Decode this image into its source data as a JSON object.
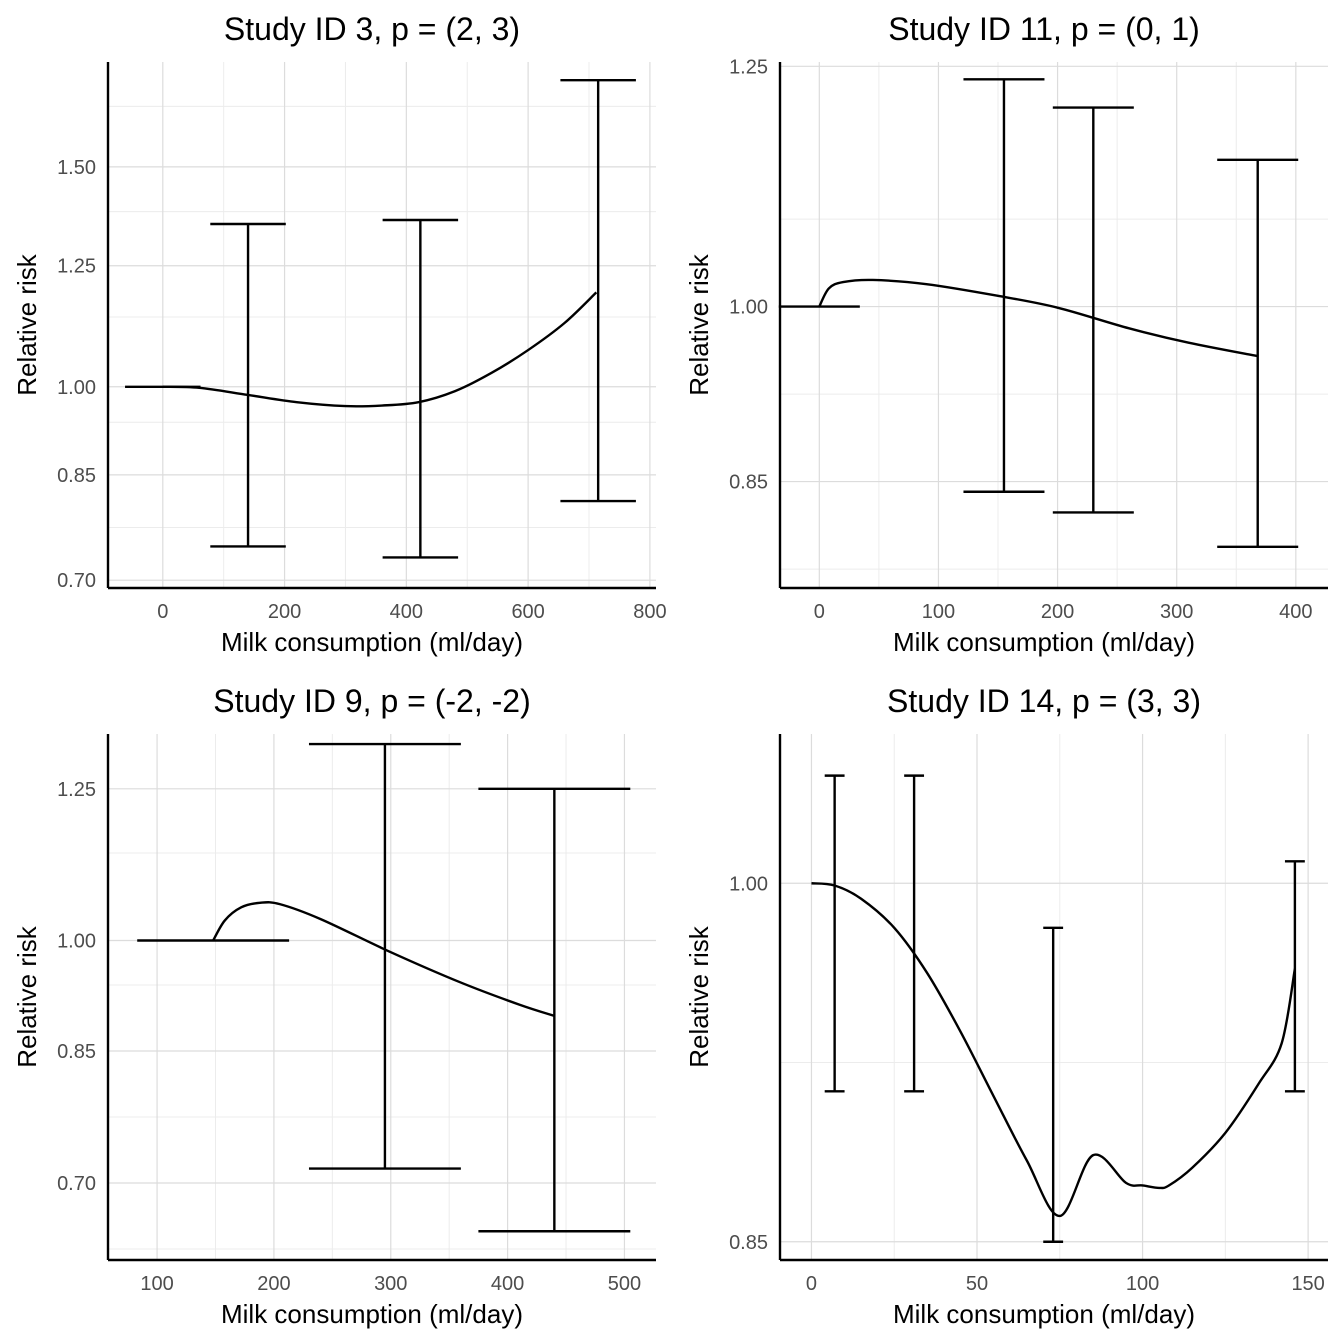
{
  "chart_data": [
    {
      "type": "line",
      "title": "Study ID 3, p = (2, 3)",
      "xlabel": "Milk consumption (ml/day)",
      "ylabel": "Relative risk",
      "log_y": true,
      "xlim": [
        -90,
        810
      ],
      "ylim": [
        0.69,
        1.82
      ],
      "x_ticks": [
        0,
        200,
        400,
        600,
        800
      ],
      "y_ticks": [
        0.7,
        0.85,
        1.0,
        1.25,
        1.5
      ],
      "y_tick_labels": [
        "0.70",
        "0.85",
        "1.00",
        "1.25",
        "1.50"
      ],
      "reference": {
        "x": 0,
        "y": 1.0,
        "halfwidth": 62
      },
      "curve": [
        [
          0,
          1.0
        ],
        [
          60,
          0.998
        ],
        [
          140,
          0.985
        ],
        [
          220,
          0.972
        ],
        [
          300,
          0.965
        ],
        [
          360,
          0.966
        ],
        [
          420,
          0.972
        ],
        [
          480,
          0.992
        ],
        [
          540,
          1.026
        ],
        [
          600,
          1.07
        ],
        [
          660,
          1.125
        ],
        [
          712,
          1.19
        ]
      ],
      "error_bars": [
        {
          "x": 140,
          "lower": 0.745,
          "upper": 1.35,
          "halfwidth": 62
        },
        {
          "x": 423,
          "lower": 0.73,
          "upper": 1.36,
          "halfwidth": 62
        },
        {
          "x": 715,
          "lower": 0.81,
          "upper": 1.76,
          "halfwidth": 62
        }
      ],
      "grid": true
    },
    {
      "type": "line",
      "title": "Study ID 11, p = (0, 1)",
      "xlabel": "Milk consumption (ml/day)",
      "ylabel": "Relative risk",
      "log_y": true,
      "xlim": [
        -33,
        427
      ],
      "ylim": [
        0.77,
        1.255
      ],
      "x_ticks": [
        0,
        100,
        200,
        300,
        400
      ],
      "y_ticks": [
        0.85,
        1.0,
        1.25
      ],
      "y_tick_labels": [
        "0.85",
        "1.00",
        "1.25"
      ],
      "reference": {
        "x": 0,
        "y": 1.0,
        "halfwidth": 34
      },
      "curve": [
        [
          0,
          1.0
        ],
        [
          8,
          1.017
        ],
        [
          20,
          1.023
        ],
        [
          45,
          1.025
        ],
        [
          90,
          1.021
        ],
        [
          150,
          1.01
        ],
        [
          200,
          0.999
        ],
        [
          260,
          0.98
        ],
        [
          310,
          0.967
        ],
        [
          368,
          0.955
        ]
      ],
      "error_bars": [
        {
          "x": 155,
          "lower": 0.842,
          "upper": 1.235,
          "halfwidth": 34
        },
        {
          "x": 230,
          "lower": 0.826,
          "upper": 1.203,
          "halfwidth": 34
        },
        {
          "x": 368,
          "lower": 0.8,
          "upper": 1.146,
          "halfwidth": 34
        }
      ],
      "grid": true
    },
    {
      "type": "line",
      "title": "Study ID 9, p = (-2, -2)",
      "xlabel": "Milk consumption (ml/day)",
      "ylabel": "Relative risk",
      "log_y": true,
      "xlim": [
        58,
        527
      ],
      "ylim": [
        0.625,
        1.355
      ],
      "x_ticks": [
        100,
        200,
        300,
        400,
        500
      ],
      "y_ticks": [
        0.7,
        0.85,
        1.0,
        1.25
      ],
      "y_tick_labels": [
        "0.70",
        "0.85",
        "1.00",
        "1.25"
      ],
      "reference": {
        "x": 148,
        "y": 1.0,
        "halfwidth": 65
      },
      "curve": [
        [
          148,
          1.0
        ],
        [
          158,
          1.03
        ],
        [
          172,
          1.05
        ],
        [
          188,
          1.057
        ],
        [
          205,
          1.055
        ],
        [
          240,
          1.032
        ],
        [
          300,
          0.983
        ],
        [
          360,
          0.94
        ],
        [
          410,
          0.91
        ],
        [
          440,
          0.895
        ]
      ],
      "error_bars": [
        {
          "x": 295,
          "lower": 0.715,
          "upper": 1.335,
          "halfwidth": 65
        },
        {
          "x": 440,
          "lower": 0.652,
          "upper": 1.25,
          "halfwidth": 65
        }
      ],
      "grid": true
    },
    {
      "type": "line",
      "title": "Study ID 14, p = (3, 3)",
      "xlabel": "Milk consumption (ml/day)",
      "ylabel": "Relative risk",
      "log_y": true,
      "xlim": [
        -9.5,
        156
      ],
      "ylim": [
        0.843,
        1.07
      ],
      "x_ticks": [
        0,
        50,
        100,
        150
      ],
      "y_ticks": [
        0.85,
        1.0
      ],
      "y_tick_labels": [
        "0.85",
        "1.00"
      ],
      "reference": {
        "x": 0,
        "y": 1.0,
        "halfwidth": 0
      },
      "curve": [
        [
          0,
          1.0
        ],
        [
          7,
          0.999
        ],
        [
          15,
          0.993
        ],
        [
          25,
          0.98
        ],
        [
          35,
          0.96
        ],
        [
          45,
          0.935
        ],
        [
          55,
          0.908
        ],
        [
          65,
          0.882
        ],
        [
          75,
          0.86
        ],
        [
          85,
          0.884
        ],
        [
          95,
          0.873
        ],
        [
          100,
          0.872
        ],
        [
          105,
          0.871
        ],
        [
          108,
          0.872
        ],
        [
          115,
          0.879
        ],
        [
          125,
          0.893
        ],
        [
          135,
          0.913
        ],
        [
          142,
          0.93
        ],
        [
          146,
          0.962
        ]
      ],
      "error_bars": [
        {
          "x": 7,
          "lower": 0.91,
          "upper": 1.05,
          "halfwidth": 3
        },
        {
          "x": 31,
          "lower": 0.91,
          "upper": 1.05,
          "halfwidth": 3
        },
        {
          "x": 73,
          "lower": 0.85,
          "upper": 0.98,
          "halfwidth": 3
        },
        {
          "x": 146,
          "lower": 0.91,
          "upper": 1.01,
          "halfwidth": 3
        }
      ],
      "grid": true
    }
  ]
}
